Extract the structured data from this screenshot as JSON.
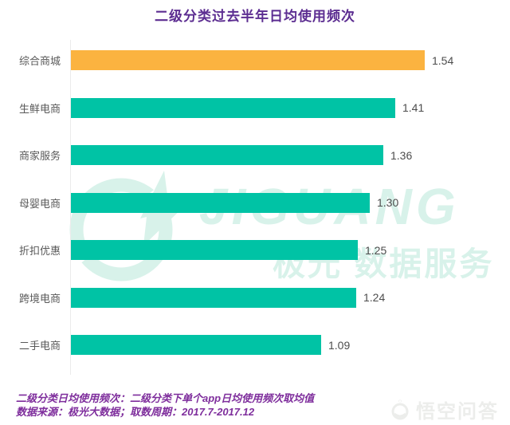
{
  "title": "二级分类过去半年日均使用频次",
  "chart_data": {
    "type": "bar",
    "orientation": "horizontal",
    "title": "二级分类过去半年日均使用频次",
    "categories": [
      "综合商城",
      "生鲜电商",
      "商家服务",
      "母婴电商",
      "折扣优惠",
      "跨境电商",
      "二手电商"
    ],
    "values": [
      1.54,
      1.41,
      1.36,
      1.3,
      1.25,
      1.24,
      1.09
    ],
    "value_labels": [
      "1.54",
      "1.41",
      "1.36",
      "1.30",
      "1.25",
      "1.24",
      "1.09"
    ],
    "highlight_index": 0,
    "highlight_color": "#FBB340",
    "bar_color": "#00C3A5",
    "label_color": "#595959",
    "value_color": "#4d4d4d",
    "grid": "off",
    "legend": "none",
    "xlim": [
      0,
      1.7
    ]
  },
  "watermark": {
    "logo_icon": "jiguang-logo-icon",
    "logo_text": "JIGUANG",
    "sub_text": "极光 数据服务",
    "color": "#d8f2ea"
  },
  "footer": {
    "line1": "二级分类日均使用频次：二级分类下单个app日均使用频次取均值",
    "line2": "数据来源：极光大数据；取数周期：2017.7-2017.12"
  },
  "corner_watermark": {
    "icon": "wukong-logo-icon",
    "text": "悟空问答"
  },
  "colors": {
    "title": "#5c2d91",
    "footer": "#7e2d9c",
    "watermark": "#d8f2ea",
    "background": "#ffffff"
  }
}
